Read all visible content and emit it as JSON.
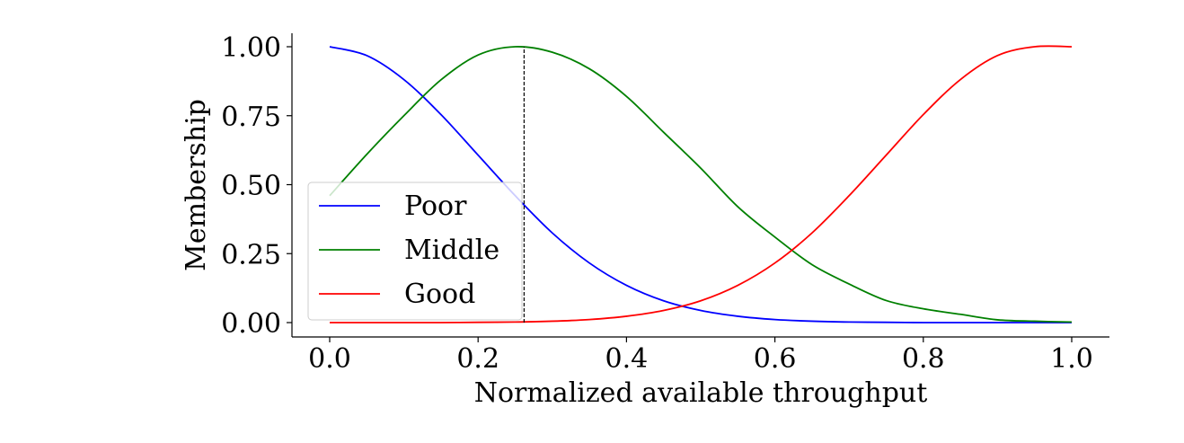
{
  "chart_data": {
    "type": "line",
    "title": "",
    "xlabel": "Normalized available throughput",
    "ylabel": "Membership",
    "xlim": [
      -0.05,
      1.05
    ],
    "ylim": [
      -0.05,
      1.05
    ],
    "x_ticks": [
      "0.0",
      "0.2",
      "0.4",
      "0.6",
      "0.8",
      "1.0"
    ],
    "x_tick_values": [
      0.0,
      0.2,
      0.4,
      0.6,
      0.8,
      1.0
    ],
    "y_ticks": [
      "0.00",
      "0.25",
      "0.50",
      "0.75",
      "1.00"
    ],
    "y_tick_values": [
      0.0,
      0.25,
      0.5,
      0.75,
      1.0
    ],
    "grid": false,
    "legend_position": "center-left",
    "series": [
      {
        "name": "Poor",
        "color": "#0000ff",
        "x": [
          0.0,
          0.05,
          0.1,
          0.15,
          0.2,
          0.25,
          0.3,
          0.35,
          0.4,
          0.45,
          0.5,
          0.55,
          0.6,
          0.65,
          0.7,
          0.75,
          0.8,
          0.85,
          0.9,
          0.95,
          1.0
        ],
        "y": [
          1.0,
          0.968,
          0.881,
          0.754,
          0.607,
          0.46,
          0.325,
          0.216,
          0.135,
          0.079,
          0.044,
          0.023,
          0.011,
          0.005,
          0.002,
          0.001,
          0.0,
          0.0,
          0.0,
          0.0,
          0.0
        ]
      },
      {
        "name": "Middle",
        "color": "#008000",
        "x": [
          0.0,
          0.05,
          0.1,
          0.15,
          0.2,
          0.25,
          0.3,
          0.35,
          0.4,
          0.45,
          0.5,
          0.55,
          0.6,
          0.65,
          0.7,
          0.75,
          0.8,
          0.85,
          0.9,
          0.95,
          1.0
        ],
        "y": [
          0.46,
          0.61,
          0.75,
          0.88,
          0.97,
          1.0,
          0.98,
          0.92,
          0.82,
          0.69,
          0.56,
          0.42,
          0.31,
          0.21,
          0.14,
          0.08,
          0.05,
          0.03,
          0.01,
          0.005,
          0.002
        ]
      },
      {
        "name": "Good",
        "color": "#ff0000",
        "x": [
          0.0,
          0.05,
          0.1,
          0.15,
          0.2,
          0.25,
          0.3,
          0.35,
          0.4,
          0.45,
          0.5,
          0.55,
          0.6,
          0.65,
          0.7,
          0.75,
          0.8,
          0.85,
          0.9,
          0.95,
          1.0
        ],
        "y": [
          0.0,
          0.0,
          0.0,
          0.0,
          0.001,
          0.002,
          0.005,
          0.011,
          0.023,
          0.044,
          0.079,
          0.135,
          0.216,
          0.325,
          0.46,
          0.607,
          0.754,
          0.881,
          0.968,
          1.0,
          1.0
        ]
      }
    ],
    "annotations": [
      {
        "type": "vline",
        "x": 0.262,
        "y_from": 0.0,
        "y_to": 1.0,
        "style": "dashed",
        "color": "#000000"
      }
    ]
  }
}
